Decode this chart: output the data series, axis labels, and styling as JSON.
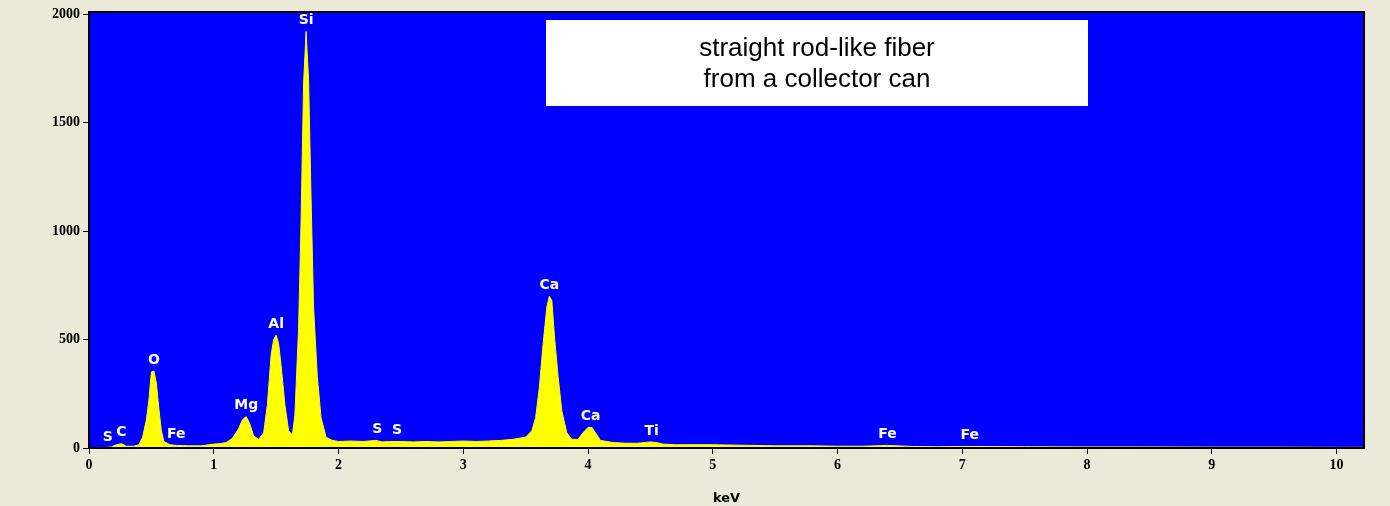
{
  "chart_data": {
    "type": "area",
    "xlabel": "keV",
    "x": [
      0.1,
      0.18,
      0.22,
      0.26,
      0.3,
      0.36,
      0.4,
      0.43,
      0.46,
      0.48,
      0.5,
      0.52,
      0.54,
      0.56,
      0.58,
      0.6,
      0.65,
      0.7,
      0.8,
      0.9,
      1.0,
      1.05,
      1.1,
      1.15,
      1.2,
      1.23,
      1.26,
      1.29,
      1.32,
      1.36,
      1.4,
      1.43,
      1.46,
      1.48,
      1.5,
      1.52,
      1.54,
      1.57,
      1.6,
      1.63,
      1.65,
      1.68,
      1.7,
      1.72,
      1.74,
      1.76,
      1.78,
      1.8,
      1.83,
      1.86,
      1.9,
      1.95,
      2.0,
      2.1,
      2.2,
      2.3,
      2.35,
      2.4,
      2.5,
      2.6,
      2.7,
      2.8,
      2.9,
      3.0,
      3.1,
      3.2,
      3.3,
      3.4,
      3.5,
      3.55,
      3.58,
      3.61,
      3.64,
      3.67,
      3.69,
      3.71,
      3.73,
      3.76,
      3.79,
      3.83,
      3.87,
      3.92,
      3.96,
      4.0,
      4.03,
      4.06,
      4.1,
      4.2,
      4.3,
      4.4,
      4.5,
      4.55,
      4.6,
      4.7,
      4.8,
      5.0,
      5.2,
      5.5,
      5.8,
      6.0,
      6.2,
      6.4,
      6.6,
      6.8,
      7.0,
      7.2,
      7.5,
      8.0,
      8.5,
      9.0,
      9.5,
      10.0,
      10.22
    ],
    "series": [
      {
        "color": "#ffff00",
        "values": [
          0,
          5,
          15,
          20,
          8,
          8,
          15,
          50,
          130,
          220,
          350,
          355,
          300,
          180,
          80,
          30,
          15,
          12,
          10,
          10,
          18,
          20,
          25,
          45,
          90,
          130,
          145,
          110,
          55,
          40,
          70,
          200,
          430,
          500,
          520,
          480,
          380,
          200,
          80,
          60,
          150,
          550,
          1050,
          1680,
          1920,
          1700,
          1150,
          650,
          330,
          140,
          50,
          35,
          30,
          32,
          30,
          35,
          28,
          30,
          30,
          28,
          30,
          28,
          30,
          32,
          30,
          32,
          35,
          40,
          50,
          80,
          140,
          280,
          480,
          650,
          700,
          680,
          520,
          330,
          170,
          70,
          40,
          40,
          70,
          95,
          95,
          70,
          35,
          25,
          22,
          22,
          28,
          25,
          18,
          15,
          15,
          15,
          13,
          10,
          10,
          8,
          8,
          12,
          7,
          6,
          7,
          7,
          6,
          5,
          5,
          4,
          4,
          3,
          3
        ]
      }
    ],
    "xlim": [
      0,
      10.22
    ],
    "xticks": [
      0,
      1,
      2,
      3,
      4,
      5,
      6,
      7,
      8,
      9,
      10
    ],
    "ylim": [
      0,
      2010
    ],
    "yticks": [
      0,
      500,
      1000,
      1500,
      2000
    ],
    "legend": false,
    "annotations": [
      "straight rod-like fiber\nfrom a collector can",
      {
        "text": "S",
        "x": 0.15,
        "y": 0
      },
      {
        "text": "C",
        "x": 0.26,
        "y": 20
      },
      {
        "text": "O",
        "x": 0.52,
        "y": 355
      },
      {
        "text": "Fe",
        "x": 0.7,
        "y": 12
      },
      {
        "text": "Mg",
        "x": 1.26,
        "y": 145
      },
      {
        "text": "Al",
        "x": 1.5,
        "y": 520
      },
      {
        "text": "Si",
        "x": 1.74,
        "y": 1920
      },
      {
        "text": "S",
        "x": 2.31,
        "y": 35
      },
      {
        "text": "S",
        "x": 2.47,
        "y": 30
      },
      {
        "text": "Ca",
        "x": 3.69,
        "y": 700
      },
      {
        "text": "Ca",
        "x": 4.02,
        "y": 95
      },
      {
        "text": "Ti",
        "x": 4.51,
        "y": 28
      },
      {
        "text": "Fe",
        "x": 6.4,
        "y": 12
      },
      {
        "text": "Fe",
        "x": 7.06,
        "y": 7
      }
    ]
  }
}
